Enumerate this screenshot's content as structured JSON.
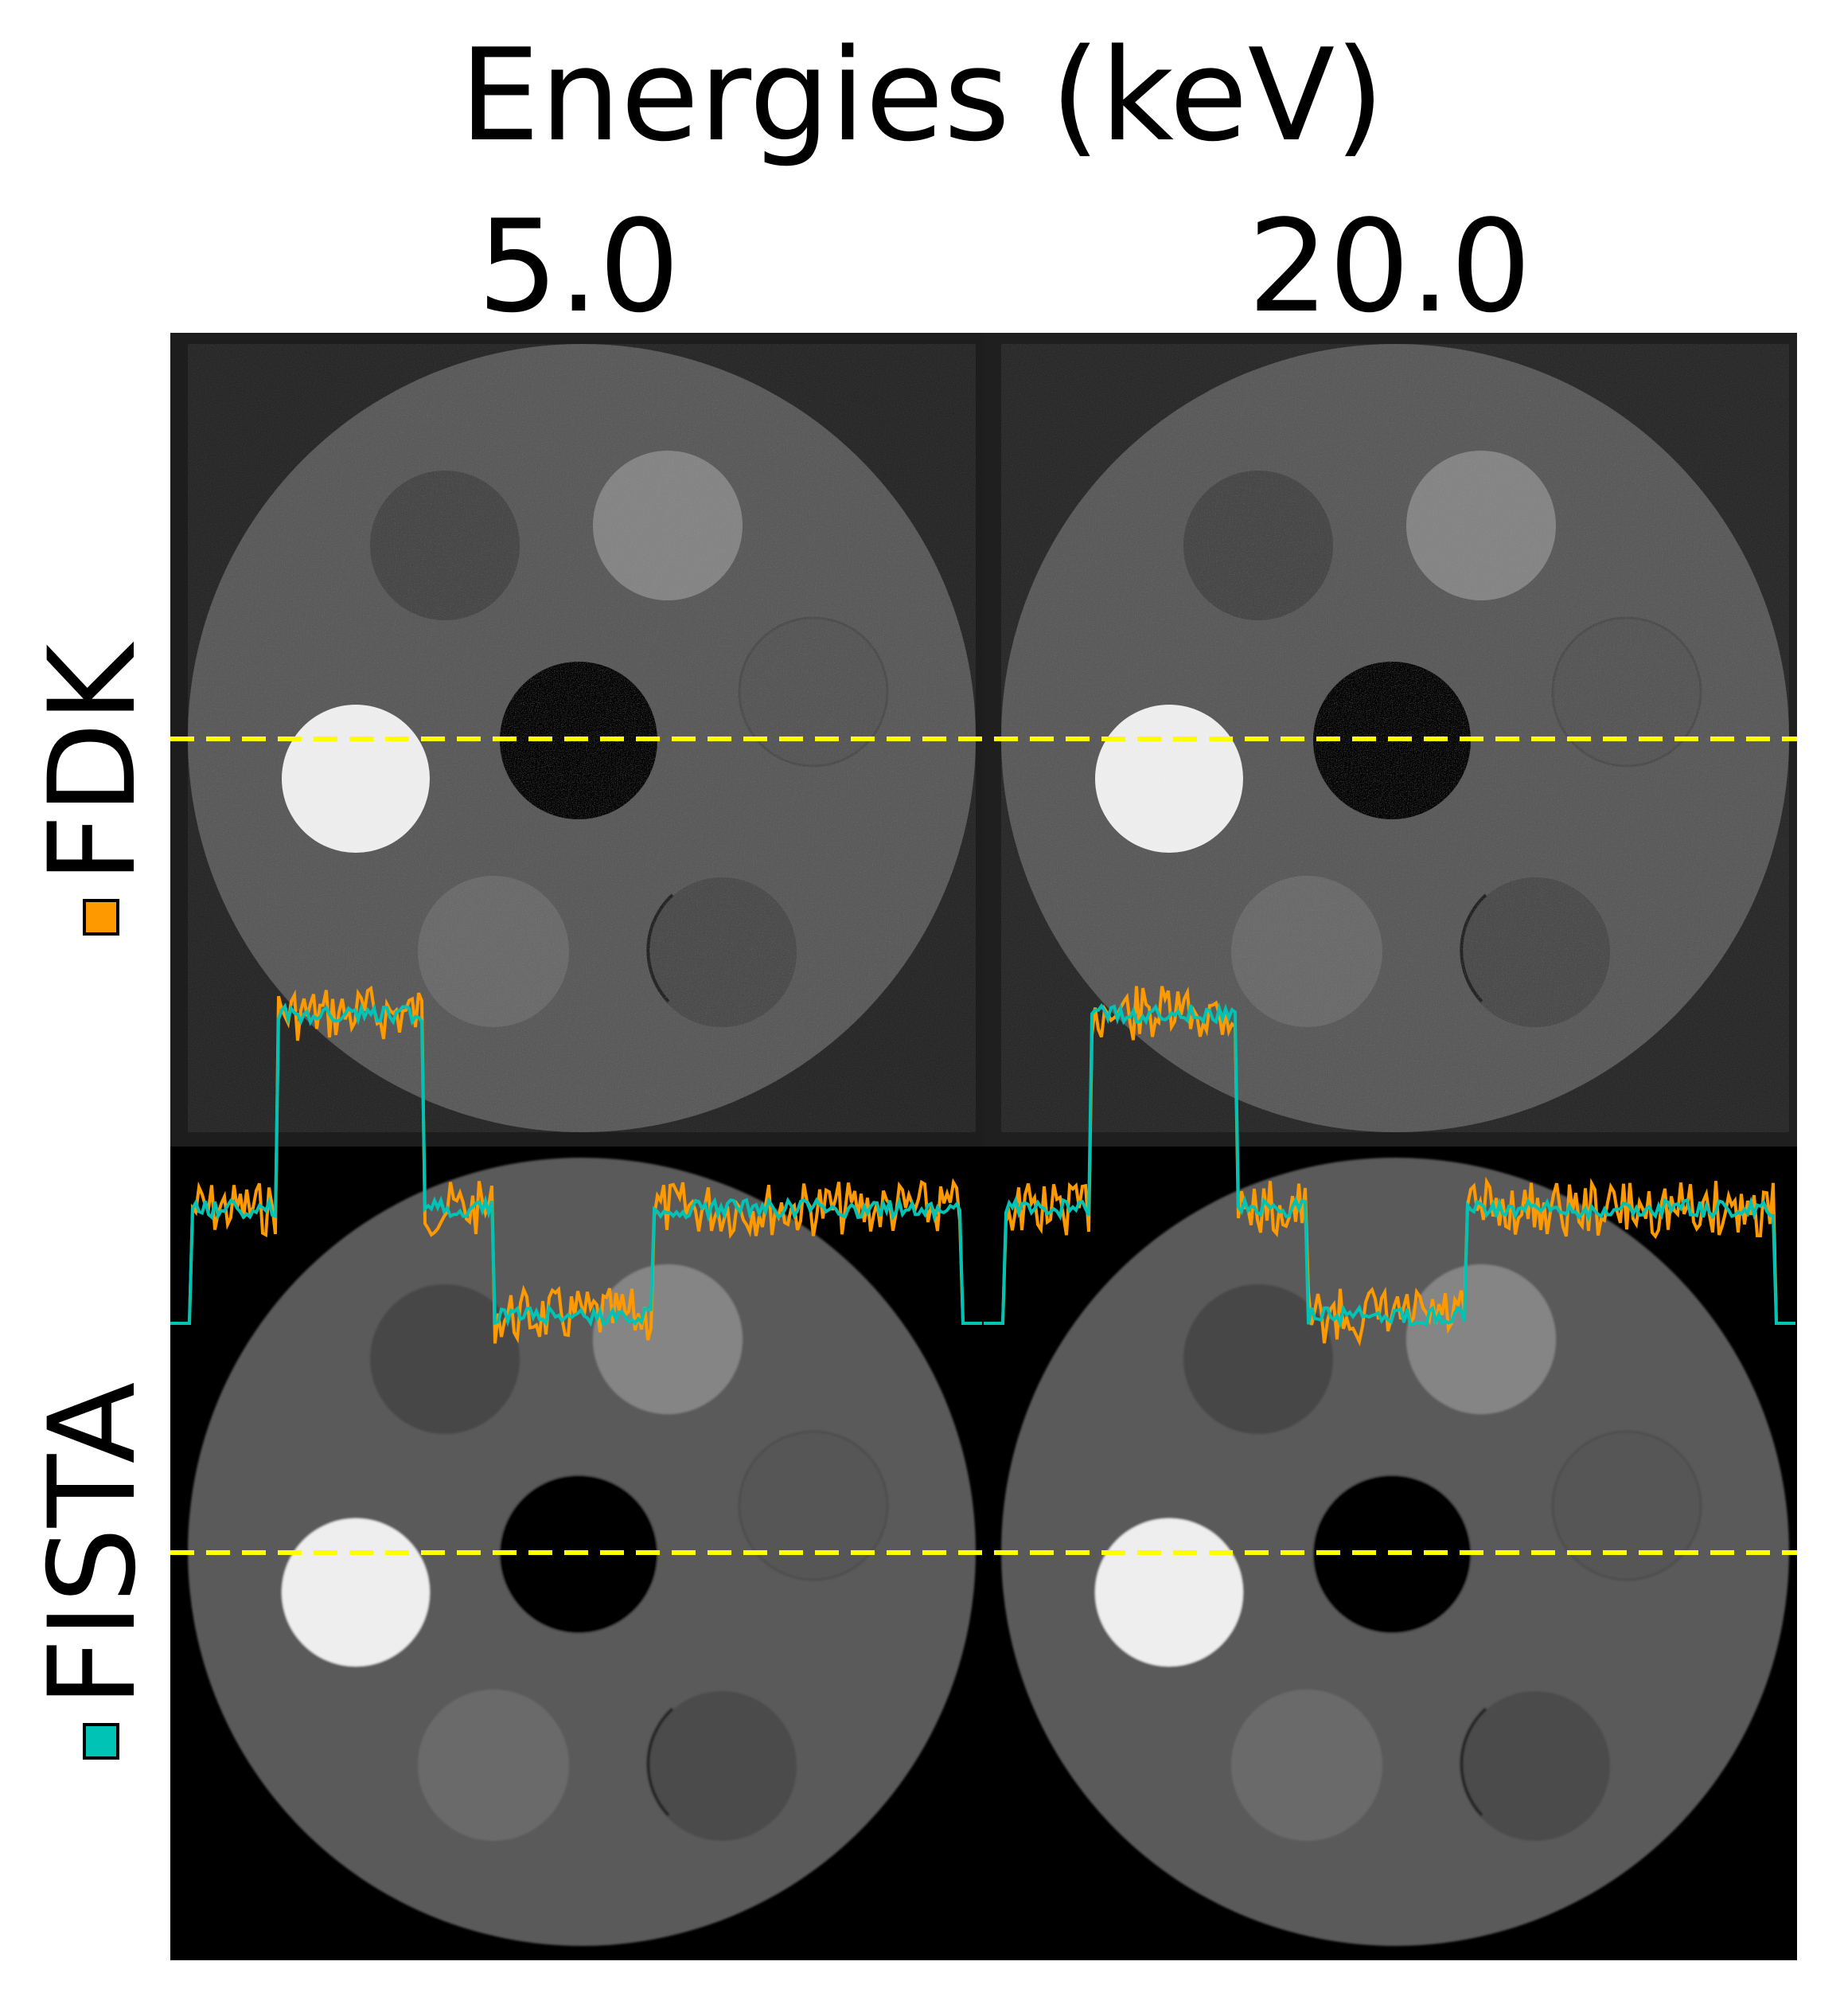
{
  "figure": {
    "title": "Energies (keV)",
    "columns": [
      "5.0",
      "20.0"
    ],
    "rows": [
      {
        "label": "FDK",
        "color": "#ff9900"
      },
      {
        "label": "FISTA",
        "color": "#00c2b5"
      }
    ],
    "line_color": "#ffff00"
  }
}
